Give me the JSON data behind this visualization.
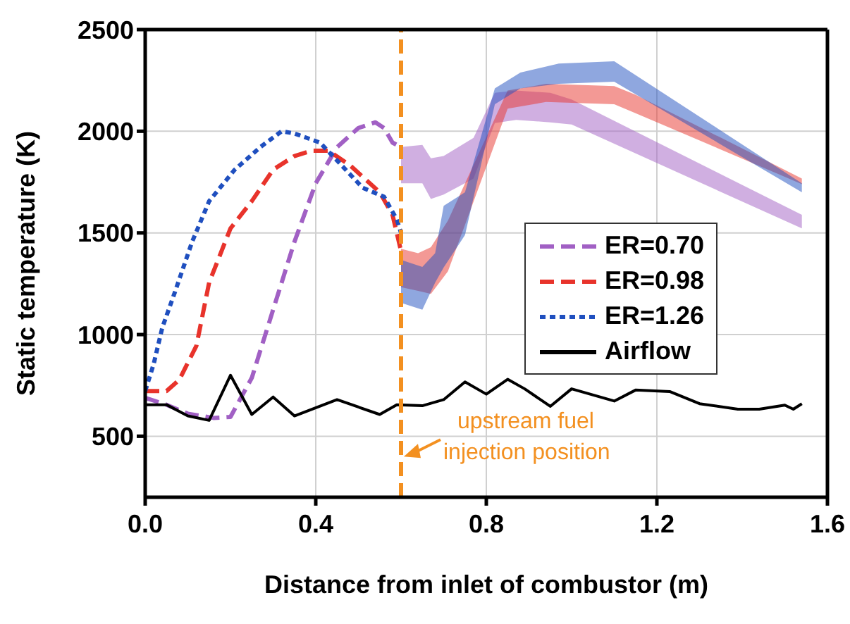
{
  "chart_data": {
    "type": "line",
    "xlabel": "Distance from inlet of combustor (m)",
    "ylabel": "Static temperature (K)",
    "xlim": [
      0,
      1.6
    ],
    "xticks": [
      {
        "value": 0,
        "label": "0.0"
      },
      0.4,
      0.8,
      1.2,
      1.6
    ],
    "ylim": [
      200,
      2500
    ],
    "yticks": [
      500,
      1000,
      1500,
      2000,
      2500
    ],
    "grid": true,
    "legend": "right",
    "series": [
      {
        "name": "ER=0.70",
        "color": "#a160c4",
        "line_style": "dashed",
        "x": [
          0,
          0.05,
          0.1,
          0.16,
          0.2,
          0.25,
          0.3,
          0.35,
          0.4,
          0.45,
          0.5,
          0.54,
          0.56,
          0.58,
          0.6,
          0.65,
          0.67,
          0.7,
          0.77,
          0.82,
          0.87,
          0.95,
          1.0,
          1.54
        ],
        "values": [
          689,
          655,
          611,
          590,
          595,
          787,
          1122,
          1456,
          1744,
          1922,
          2016,
          2044,
          2016,
          1944,
          1922,
          null,
          null,
          null,
          null,
          null,
          null,
          null,
          null,
          null
        ],
        "lower": [
          null,
          null,
          null,
          null,
          null,
          null,
          null,
          null,
          null,
          null,
          null,
          null,
          null,
          null,
          1744,
          1744,
          1667,
          1689,
          1767,
          2040,
          2056,
          2044,
          2033,
          1522
        ],
        "upper": [
          null,
          null,
          null,
          null,
          null,
          null,
          null,
          null,
          null,
          null,
          null,
          null,
          null,
          null,
          1922,
          1933,
          1867,
          1878,
          1967,
          2189,
          2200,
          2189,
          2156,
          1589
        ]
      },
      {
        "name": "ER=0.98",
        "color": "#e8332b",
        "line_style": "dashed",
        "x": [
          0,
          0.05,
          0.08,
          0.12,
          0.15,
          0.2,
          0.25,
          0.3,
          0.35,
          0.39,
          0.43,
          0.48,
          0.55,
          0.58,
          0.6,
          0.64,
          0.67,
          0.71,
          0.85,
          0.94,
          1.1,
          1.15,
          1.54
        ],
        "values": [
          722,
          722,
          778,
          944,
          1256,
          1522,
          1656,
          1811,
          1878,
          1904,
          1904,
          1833,
          1700,
          1589,
          1411,
          null,
          null,
          null,
          null,
          null,
          null,
          null,
          null
        ],
        "lower": [
          null,
          null,
          null,
          null,
          null,
          null,
          null,
          null,
          null,
          null,
          null,
          null,
          null,
          null,
          1233,
          1215,
          1200,
          1311,
          2111,
          2144,
          2133,
          2089,
          1740
        ],
        "upper": [
          null,
          null,
          null,
          null,
          null,
          null,
          null,
          null,
          null,
          null,
          null,
          null,
          null,
          null,
          1422,
          1400,
          1430,
          1560,
          2200,
          2233,
          2222,
          2180,
          1767
        ]
      },
      {
        "name": "ER=1.26",
        "color": "#1f4fbf",
        "line_style": "dotted",
        "x": [
          0,
          0.02,
          0.04,
          0.07,
          0.11,
          0.15,
          0.21,
          0.27,
          0.32,
          0.35,
          0.41,
          0.45,
          0.51,
          0.56,
          0.59,
          0.6,
          0.65,
          0.68,
          0.7,
          0.75,
          0.82,
          0.88,
          0.97,
          1.1,
          1.54
        ],
        "values": [
          722,
          856,
          1033,
          1211,
          1456,
          1656,
          1811,
          1922,
          2000,
          1989,
          1944,
          1856,
          1722,
          1678,
          1567,
          1500,
          null,
          null,
          null,
          null,
          null,
          null,
          null,
          null,
          null
        ],
        "lower": [
          null,
          null,
          null,
          null,
          null,
          null,
          null,
          null,
          null,
          null,
          null,
          null,
          null,
          null,
          null,
          1156,
          1122,
          1256,
          1330,
          1489,
          2133,
          2211,
          2233,
          2244,
          1700
        ],
        "upper": [
          null,
          null,
          null,
          null,
          null,
          null,
          null,
          null,
          null,
          null,
          null,
          null,
          null,
          null,
          null,
          1367,
          1333,
          1400,
          1633,
          1700,
          2211,
          2289,
          2333,
          2344,
          1744
        ]
      },
      {
        "name": "Airflow",
        "color": "#000000",
        "line_style": "solid",
        "x": [
          0,
          0.05,
          0.1,
          0.15,
          0.2,
          0.25,
          0.3,
          0.35,
          0.45,
          0.55,
          0.59,
          0.65,
          0.7,
          0.75,
          0.8,
          0.85,
          0.89,
          0.95,
          1.0,
          1.1,
          1.15,
          1.23,
          1.3,
          1.39,
          1.44,
          1.5,
          1.52,
          1.54
        ],
        "values": [
          655,
          655,
          600,
          578,
          800,
          607,
          693,
          600,
          680,
          607,
          655,
          650,
          680,
          767,
          707,
          780,
          733,
          647,
          733,
          673,
          727,
          720,
          660,
          633,
          633,
          653,
          633,
          660
        ]
      }
    ],
    "ref_lines": [
      {
        "axis": "x",
        "value": 0.6,
        "color": "#f39020",
        "line_style": "dashed"
      }
    ],
    "annotations": [
      {
        "text": "upstream fuel injection position",
        "x": 0.6,
        "y": 400
      }
    ]
  }
}
